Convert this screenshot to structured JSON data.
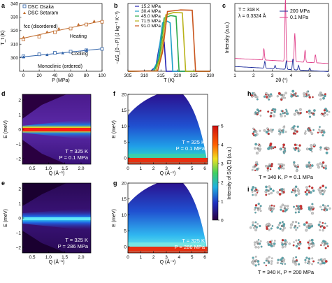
{
  "panels": {
    "a": {
      "letter": "a",
      "ylabel": "T_t (K)",
      "xlabel": "P (MPa)",
      "legend": [
        "DSC Osaka",
        "DSC Setaram"
      ],
      "labels": {
        "fcc": "fcc (disordered)",
        "heating": "Heating",
        "cooling": "Cooling",
        "mono": "Monoclinic (ordered)"
      },
      "yticks": [
        "300",
        "310",
        "320",
        "330",
        "340"
      ],
      "xticks": [
        "0",
        "20",
        "40",
        "60",
        "80",
        "100"
      ],
      "colors": {
        "heating": "#c06a2b",
        "cooling": "#2e61a8"
      }
    },
    "b": {
      "letter": "b",
      "ylabel": "−ΔS_{0→P} (J kg⁻¹ K⁻¹)",
      "xlabel": "T (K)",
      "xticks": [
        "305",
        "310",
        "315",
        "320",
        "325",
        "330"
      ],
      "legend": [
        "15.2 MPa",
        "30.4 MPa",
        "45.0 MPa",
        "71.5 MPa",
        "91.0 MPa"
      ],
      "colors": [
        "#2424b4",
        "#1fa0c8",
        "#2eaa4a",
        "#b9b21a",
        "#c9561e"
      ]
    },
    "c": {
      "letter": "c",
      "ylabel": "Intensity (a.u.)",
      "xlabel": "2θ (°)",
      "xticks": [
        "1",
        "2",
        "3",
        "4",
        "5",
        "6"
      ],
      "ann": [
        "T = 318 K",
        "λ = 0.3324 Å"
      ],
      "legend": [
        "200 MPa",
        "0.1 MPa"
      ],
      "colors": [
        "#1a2a9a",
        "#e0408a"
      ]
    },
    "d": {
      "letter": "d",
      "ylabel": "E (meV)",
      "xlabel": "Q (Å⁻¹)",
      "yticks": [
        "2",
        "1",
        "0",
        "−1",
        "−2"
      ],
      "xticks": [
        "0.5",
        "1.0",
        "1.5",
        "2.0"
      ],
      "ann": [
        "T = 325 K",
        "P = 0.1 MPa"
      ]
    },
    "e": {
      "letter": "e",
      "ylabel": "E (meV)",
      "xlabel": "Q (Å⁻¹)",
      "yticks": [
        "2",
        "1",
        "0",
        "−1",
        "−2"
      ],
      "xticks": [
        "0.5",
        "1.0",
        "1.5",
        "2.0"
      ],
      "ann": [
        "T = 325 K",
        "P = 286 MPa"
      ]
    },
    "f": {
      "letter": "f",
      "ylabel": "E (meV)",
      "xlabel": "Q (Å⁻¹)",
      "yticks": [
        "20",
        "15",
        "10",
        "5",
        "0"
      ],
      "xticks": [
        "0",
        "1",
        "2",
        "3",
        "4",
        "5",
        "6"
      ],
      "ann": [
        "T = 325 K",
        "P = 0.1 MPa"
      ]
    },
    "g": {
      "letter": "g",
      "ylabel": "E (meV)",
      "xlabel": "Q (Å⁻¹)",
      "yticks": [
        "20",
        "15",
        "10",
        "5",
        "0"
      ],
      "xticks": [
        "0",
        "1",
        "2",
        "3",
        "4",
        "5",
        "6"
      ],
      "ann": [
        "T = 325 K",
        "P = 286 MPa"
      ]
    },
    "colorbar": {
      "label": "Intensity of S(Q,E) (a.u.)",
      "ticks": [
        "5",
        "4",
        "3",
        "2",
        "1",
        "0"
      ]
    },
    "h": {
      "letter": "h",
      "caption": "T = 340 K, P = 0.1 MPa"
    },
    "i": {
      "letter": "i",
      "caption": "T = 340 K, P = 200 MPa"
    }
  },
  "chart_data": [
    {
      "panel": "a",
      "type": "scatter",
      "ylabel": "T_t (K)",
      "xlabel": "P (MPa)",
      "xlim": [
        -5,
        100
      ],
      "ylim": [
        290,
        340
      ],
      "series": [
        {
          "name": "DSC Osaka",
          "values": [
            [
              0,
              313.5
            ],
            [
              20,
              315.5
            ],
            [
              40,
              318.8
            ],
            [
              60,
              321.5
            ],
            [
              80,
              324.5
            ],
            [
              100,
              326.5
            ]
          ]
        },
        {
          "name": "DSC Setaram",
          "values": [
            [
              0,
              315
            ],
            [
              30,
              319
            ],
            [
              45,
              321.5
            ],
            [
              70,
              324.5
            ],
            [
              90,
              327
            ]
          ]
        },
        {
          "name": "DSC Osaka",
          "values": [
            [
              0,
              301
            ],
            [
              20,
              302.5
            ],
            [
              40,
              303.6
            ],
            [
              60,
              304.5
            ],
            [
              80,
              305.5
            ],
            [
              100,
              306.5
            ]
          ]
        },
        {
          "name": "DSC Setaram",
          "values": [
            [
              0,
              300.5
            ],
            [
              30,
              302.2
            ],
            [
              50,
              303.5
            ],
            [
              80,
              305.5
            ]
          ]
        }
      ]
    },
    {
      "panel": "b",
      "type": "line",
      "xlabel": "T (K)",
      "xlim": [
        305,
        330
      ],
      "ylim": [
        0,
        420
      ],
      "series": [
        {
          "name": "15.2 MPa",
          "values": [
            [
              305,
              0
            ],
            [
              312,
              2
            ],
            [
              313.5,
              30
            ],
            [
              314.5,
              150
            ],
            [
              315.3,
              220
            ],
            [
              316,
              180
            ],
            [
              316.6,
              0
            ],
            [
              330,
              0
            ]
          ]
        },
        {
          "name": "30.4 MPa",
          "values": [
            [
              305,
              0
            ],
            [
              312.5,
              2
            ],
            [
              314,
              60
            ],
            [
              315.5,
              300
            ],
            [
              317,
              310
            ],
            [
              317.8,
              300
            ],
            [
              318.6,
              0
            ],
            [
              330,
              0
            ]
          ]
        },
        {
          "name": "45.0 MPa",
          "values": [
            [
              305,
              0
            ],
            [
              313,
              2
            ],
            [
              314.5,
              80
            ],
            [
              316,
              330
            ],
            [
              318,
              345
            ],
            [
              319.6,
              340
            ],
            [
              320.5,
              0
            ],
            [
              330,
              0
            ]
          ]
        },
        {
          "name": "71.5 MPa",
          "values": [
            [
              305,
              0
            ],
            [
              313.5,
              2
            ],
            [
              315,
              100
            ],
            [
              316.5,
              350
            ],
            [
              319,
              365
            ],
            [
              321.5,
              362
            ],
            [
              322.5,
              0
            ],
            [
              330,
              0
            ]
          ]
        },
        {
          "name": "91.0 MPa",
          "values": [
            [
              305,
              0
            ],
            [
              314,
              2
            ],
            [
              315.5,
              120
            ],
            [
              317,
              370
            ],
            [
              321,
              380
            ],
            [
              324.5,
              378
            ],
            [
              325.5,
              0
            ],
            [
              330,
              0
            ]
          ]
        }
      ]
    },
    {
      "panel": "c",
      "type": "line",
      "xlabel": "2θ (°)",
      "ylabel": "Intensity (a.u.)",
      "xlim": [
        1,
        6
      ],
      "ylim": [
        0,
        10
      ],
      "series": [
        {
          "name": "0.1 MPa",
          "peaks": [
            [
              2.55,
              1.7
            ],
            [
              3.7,
              9.3
            ],
            [
              4.2,
              4.2
            ],
            [
              4.75,
              1.8
            ],
            [
              5.3,
              1.2
            ]
          ],
          "baseline": 1.9
        },
        {
          "name": "200 MPa",
          "peaks": [
            [
              2.6,
              1.0
            ],
            [
              3.15,
              0.5
            ],
            [
              3.75,
              1.3
            ],
            [
              4.1,
              1.6
            ],
            [
              4.4,
              0.7
            ],
            [
              5.0,
              0.4
            ]
          ],
          "baseline": 0.7
        }
      ]
    },
    {
      "panel": "d",
      "type": "heatmap",
      "xlim": [
        0.1,
        2.2
      ],
      "ylim": [
        -2,
        2
      ],
      "zlim": [
        0,
        5
      ]
    },
    {
      "panel": "e",
      "type": "heatmap",
      "xlim": [
        0.1,
        2.2
      ],
      "ylim": [
        -2,
        2
      ],
      "zlim": [
        0,
        5
      ]
    },
    {
      "panel": "f",
      "type": "heatmap",
      "xlim": [
        0,
        6.2
      ],
      "ylim": [
        -2,
        20
      ],
      "zlim": [
        0,
        5
      ]
    },
    {
      "panel": "g",
      "type": "heatmap",
      "xlim": [
        0,
        6.2
      ],
      "ylim": [
        -2,
        20
      ],
      "zlim": [
        0,
        5
      ]
    }
  ]
}
